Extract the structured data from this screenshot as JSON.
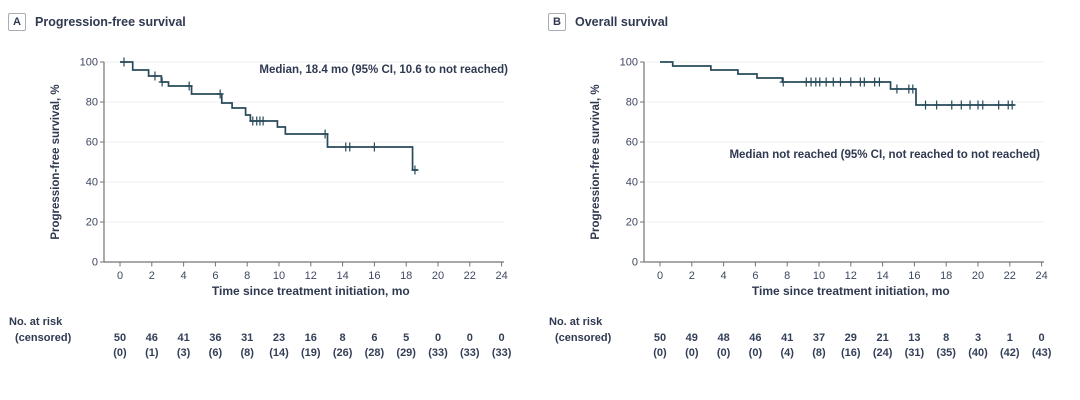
{
  "figure": {
    "panels": [
      {
        "label": "A",
        "risk_label": "No. at risk",
        "censored_label": "(censored)"
      },
      {
        "label": "B",
        "risk_label": "No. at risk",
        "censored_label": "(censored)"
      }
    ]
  },
  "chart_data": [
    {
      "type": "line",
      "subtype": "kaplan_meier_step",
      "panel": "A",
      "title": "Progression-free survival",
      "annotation": "Median, 18.4 mo (95% CI, 10.6 to not reached)",
      "xlabel": "Time since treatment initiation, mo",
      "ylabel": "Progression-free survival, %",
      "xlim": [
        0,
        24
      ],
      "ylim": [
        0,
        100
      ],
      "xticks": [
        0,
        2,
        4,
        6,
        8,
        10,
        12,
        14,
        16,
        18,
        20,
        22,
        24
      ],
      "yticks": [
        0,
        20,
        40,
        60,
        80,
        100
      ],
      "grid": true,
      "legend": "none",
      "line_color": "#27495a",
      "steps": [
        [
          0,
          100
        ],
        [
          0.8,
          96
        ],
        [
          1.8,
          93
        ],
        [
          2.6,
          90
        ],
        [
          3.05,
          88
        ],
        [
          4.5,
          84
        ],
        [
          6.4,
          79.5
        ],
        [
          7.05,
          77
        ],
        [
          7.9,
          73.5
        ],
        [
          8.2,
          70.5
        ],
        [
          9.9,
          67.5
        ],
        [
          10.4,
          64
        ],
        [
          13.05,
          57.5
        ],
        [
          18.4,
          46
        ]
      ],
      "end_x": 18.75,
      "censor_marks": [
        [
          0.25,
          100
        ],
        [
          2.2,
          93
        ],
        [
          2.65,
          90
        ],
        [
          4.35,
          88
        ],
        [
          6.3,
          84
        ],
        [
          8.35,
          70.5
        ],
        [
          8.6,
          70.5
        ],
        [
          8.8,
          70.5
        ],
        [
          9.0,
          70.5
        ],
        [
          12.9,
          64
        ],
        [
          14.2,
          57.5
        ],
        [
          14.45,
          57.5
        ],
        [
          16.0,
          57.5
        ],
        [
          18.55,
          46
        ]
      ],
      "at_risk_times": [
        0,
        2,
        4,
        6,
        8,
        10,
        12,
        14,
        16,
        18,
        20,
        22,
        24
      ],
      "at_risk": [
        "50",
        "46",
        "41",
        "36",
        "31",
        "23",
        "16",
        "8",
        "6",
        "5",
        "0",
        "0",
        "0"
      ],
      "censored": [
        "(0)",
        "(1)",
        "(3)",
        "(6)",
        "(8)",
        "(14)",
        "(19)",
        "(26)",
        "(28)",
        "(29)",
        "(33)",
        "(33)",
        "(33)"
      ]
    },
    {
      "type": "line",
      "subtype": "kaplan_meier_step",
      "panel": "B",
      "title": "Overall survival",
      "annotation": "Median not reached (95% CI, not reached to not reached)",
      "xlabel": "Time since treatment initiation, mo",
      "ylabel": "Progression-free survival, %",
      "xlim": [
        0,
        24
      ],
      "ylim": [
        0,
        100
      ],
      "xticks": [
        0,
        2,
        4,
        6,
        8,
        10,
        12,
        14,
        16,
        18,
        20,
        22,
        24
      ],
      "yticks": [
        0,
        20,
        40,
        60,
        80,
        100
      ],
      "grid": true,
      "legend": "none",
      "line_color": "#27495a",
      "steps": [
        [
          0,
          100
        ],
        [
          0.8,
          98
        ],
        [
          3.2,
          96
        ],
        [
          4.9,
          94
        ],
        [
          6.1,
          92
        ],
        [
          7.7,
          90
        ],
        [
          14.5,
          86.5
        ],
        [
          16.1,
          78.5
        ]
      ],
      "end_x": 22.3,
      "censor_marks": [
        [
          7.75,
          90
        ],
        [
          9.2,
          90
        ],
        [
          9.5,
          90
        ],
        [
          9.8,
          90
        ],
        [
          10.05,
          90
        ],
        [
          10.45,
          90
        ],
        [
          10.9,
          90
        ],
        [
          11.35,
          90
        ],
        [
          12.0,
          90
        ],
        [
          12.6,
          90
        ],
        [
          12.85,
          90
        ],
        [
          13.5,
          90
        ],
        [
          13.8,
          90
        ],
        [
          14.9,
          86.5
        ],
        [
          15.65,
          86.5
        ],
        [
          15.9,
          86.5
        ],
        [
          16.7,
          78.5
        ],
        [
          17.4,
          78.5
        ],
        [
          18.35,
          78.5
        ],
        [
          18.95,
          78.5
        ],
        [
          19.5,
          78.5
        ],
        [
          20.0,
          78.5
        ],
        [
          20.3,
          78.5
        ],
        [
          21.3,
          78.5
        ],
        [
          21.9,
          78.5
        ],
        [
          22.15,
          78.5
        ]
      ],
      "at_risk_times": [
        0,
        2,
        4,
        6,
        8,
        10,
        12,
        14,
        16,
        18,
        20,
        22,
        24
      ],
      "at_risk": [
        "50",
        "49",
        "48",
        "46",
        "41",
        "37",
        "29",
        "21",
        "13",
        "8",
        "3",
        "1",
        "0"
      ],
      "censored": [
        "(0)",
        "(0)",
        "(0)",
        "(0)",
        "(4)",
        "(8)",
        "(16)",
        "(24)",
        "(31)",
        "(35)",
        "(40)",
        "(42)",
        "(43)"
      ]
    }
  ]
}
